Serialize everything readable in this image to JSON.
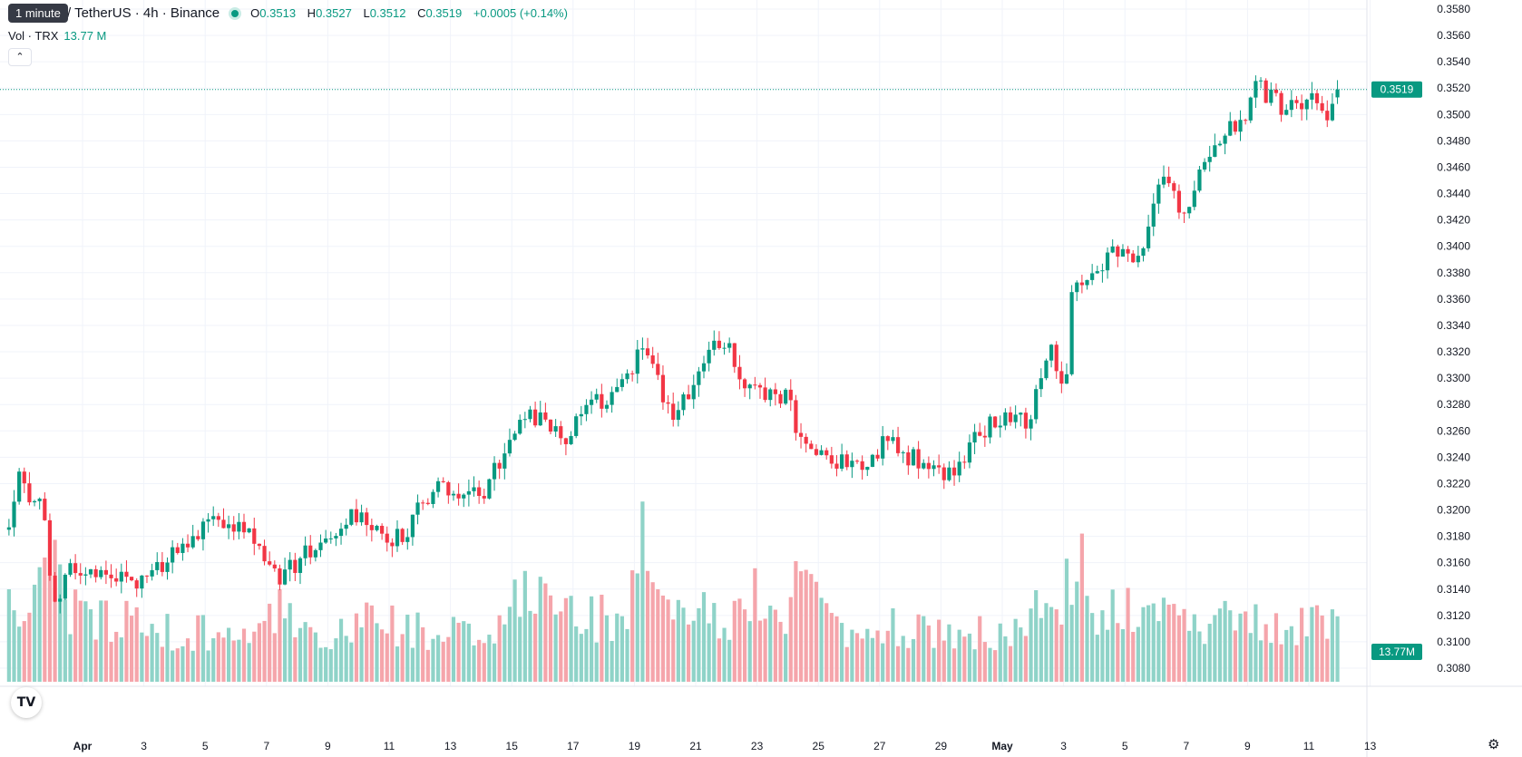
{
  "header": {
    "tooltip": "1 minute",
    "symbol": "/ TetherUS · 4h · Binance",
    "ohlc": {
      "o_label": "O",
      "o": "0.3513",
      "h_label": "H",
      "h": "0.3527",
      "l_label": "L",
      "l": "0.3512",
      "c_label": "C",
      "c": "0.3519",
      "change": "+0.0005 (+0.14%)"
    },
    "vol_label": "Vol · TRX",
    "vol_value": "13.77 M",
    "collapse_icon": "chevron-up-icon"
  },
  "colors": {
    "up": "#089981",
    "down": "#f23645",
    "vol_up": "#8fd3c8",
    "vol_down": "#f5a5ab",
    "grid": "#f0f3fa"
  },
  "chart_data": {
    "type": "candlestick",
    "y_ticks": [
      "0.3580",
      "0.3560",
      "0.3540",
      "0.3520",
      "0.3500",
      "0.3480",
      "0.3460",
      "0.3440",
      "0.3420",
      "0.3400",
      "0.3380",
      "0.3360",
      "0.3340",
      "0.3320",
      "0.3300",
      "0.3280",
      "0.3260",
      "0.3240",
      "0.3220",
      "0.3200",
      "0.3180",
      "0.3160",
      "0.3140",
      "0.3120",
      "0.3100",
      "0.3080"
    ],
    "ylim": [
      0.3072,
      0.3586
    ],
    "x_ticks": [
      {
        "label": "Apr",
        "day": 1,
        "bold": true
      },
      {
        "label": "3",
        "day": 3
      },
      {
        "label": "5",
        "day": 5
      },
      {
        "label": "7",
        "day": 7
      },
      {
        "label": "9",
        "day": 9
      },
      {
        "label": "11",
        "day": 11
      },
      {
        "label": "13",
        "day": 13
      },
      {
        "label": "15",
        "day": 15
      },
      {
        "label": "17",
        "day": 17
      },
      {
        "label": "19",
        "day": 19
      },
      {
        "label": "21",
        "day": 21
      },
      {
        "label": "23",
        "day": 23
      },
      {
        "label": "25",
        "day": 25
      },
      {
        "label": "27",
        "day": 27
      },
      {
        "label": "29",
        "day": 29
      },
      {
        "label": "May",
        "day": 31,
        "bold": true
      },
      {
        "label": "3",
        "day": 33
      },
      {
        "label": "5",
        "day": 35
      },
      {
        "label": "7",
        "day": 37
      },
      {
        "label": "9",
        "day": 39
      },
      {
        "label": "11",
        "day": 41
      },
      {
        "label": "13",
        "day": 43
      }
    ],
    "last_price": "0.3519",
    "last_volume": "13.77M",
    "anchors": [
      {
        "day": -1.4,
        "price": 0.3185,
        "vol": 0.8
      },
      {
        "day": -1.0,
        "price": 0.3242,
        "vol": 0.7
      },
      {
        "day": -0.7,
        "price": 0.3195,
        "vol": 0.7
      },
      {
        "day": -0.35,
        "price": 0.3215,
        "vol": 0.9
      },
      {
        "day": -0.15,
        "price": 0.3172,
        "vol": 1.0
      },
      {
        "day": 0.15,
        "price": 0.3118,
        "vol": 1.1
      },
      {
        "day": 0.5,
        "price": 0.315,
        "vol": 0.8
      },
      {
        "day": 0.8,
        "price": 0.3158,
        "vol": 0.7
      },
      {
        "day": 1.6,
        "price": 0.3155,
        "vol": 0.6
      },
      {
        "day": 2.3,
        "price": 0.3152,
        "vol": 0.6
      },
      {
        "day": 2.7,
        "price": 0.314,
        "vol": 0.8
      },
      {
        "day": 3.3,
        "price": 0.3152,
        "vol": 0.5
      },
      {
        "day": 4.5,
        "price": 0.318,
        "vol": 0.5
      },
      {
        "day": 5.7,
        "price": 0.3192,
        "vol": 0.5
      },
      {
        "day": 6.1,
        "price": 0.3185,
        "vol": 0.6
      },
      {
        "day": 6.6,
        "price": 0.318,
        "vol": 0.5
      },
      {
        "day": 7.4,
        "price": 0.3145,
        "vol": 0.7
      },
      {
        "day": 8.2,
        "price": 0.3165,
        "vol": 0.6
      },
      {
        "day": 9.1,
        "price": 0.318,
        "vol": 0.5
      },
      {
        "day": 9.7,
        "price": 0.32,
        "vol": 0.5
      },
      {
        "day": 10.3,
        "price": 0.3195,
        "vol": 0.6
      },
      {
        "day": 10.8,
        "price": 0.3175,
        "vol": 0.6
      },
      {
        "day": 11.6,
        "price": 0.3185,
        "vol": 0.5
      },
      {
        "day": 12.5,
        "price": 0.3222,
        "vol": 0.5
      },
      {
        "day": 13.3,
        "price": 0.321,
        "vol": 0.6
      },
      {
        "day": 14.1,
        "price": 0.3215,
        "vol": 0.5
      },
      {
        "day": 14.8,
        "price": 0.3242,
        "vol": 0.7
      },
      {
        "day": 15.3,
        "price": 0.3275,
        "vol": 1.0
      },
      {
        "day": 16.1,
        "price": 0.3265,
        "vol": 0.8
      },
      {
        "day": 16.7,
        "price": 0.325,
        "vol": 0.8
      },
      {
        "day": 17.4,
        "price": 0.3275,
        "vol": 0.7
      },
      {
        "day": 18.2,
        "price": 0.3288,
        "vol": 0.6
      },
      {
        "day": 18.9,
        "price": 0.33,
        "vol": 0.8
      },
      {
        "day": 19.2,
        "price": 0.3335,
        "vol": 1.4
      },
      {
        "day": 19.6,
        "price": 0.3305,
        "vol": 0.9
      },
      {
        "day": 20.2,
        "price": 0.3275,
        "vol": 0.8
      },
      {
        "day": 20.9,
        "price": 0.3285,
        "vol": 0.6
      },
      {
        "day": 21.6,
        "price": 0.333,
        "vol": 0.7
      },
      {
        "day": 22.1,
        "price": 0.333,
        "vol": 0.6
      },
      {
        "day": 22.5,
        "price": 0.3295,
        "vol": 1.0
      },
      {
        "day": 23.2,
        "price": 0.3288,
        "vol": 0.7
      },
      {
        "day": 24.0,
        "price": 0.3285,
        "vol": 0.6
      },
      {
        "day": 24.5,
        "price": 0.3245,
        "vol": 1.1
      },
      {
        "day": 25.2,
        "price": 0.3238,
        "vol": 0.6
      },
      {
        "day": 26.6,
        "price": 0.3238,
        "vol": 0.5
      },
      {
        "day": 27.4,
        "price": 0.3255,
        "vol": 0.6
      },
      {
        "day": 28.0,
        "price": 0.324,
        "vol": 0.5
      },
      {
        "day": 28.9,
        "price": 0.3225,
        "vol": 0.5
      },
      {
        "day": 29.5,
        "price": 0.3232,
        "vol": 0.5
      },
      {
        "day": 30.3,
        "price": 0.3262,
        "vol": 0.5
      },
      {
        "day": 31.2,
        "price": 0.3268,
        "vol": 0.5
      },
      {
        "day": 31.9,
        "price": 0.327,
        "vol": 0.6
      },
      {
        "day": 32.6,
        "price": 0.3322,
        "vol": 0.8
      },
      {
        "day": 32.9,
        "price": 0.3298,
        "vol": 0.8
      },
      {
        "day": 33.1,
        "price": 0.33,
        "vol": 1.0
      },
      {
        "day": 33.3,
        "price": 0.337,
        "vol": 1.3
      },
      {
        "day": 34.1,
        "price": 0.3385,
        "vol": 0.7
      },
      {
        "day": 34.7,
        "price": 0.3395,
        "vol": 0.7
      },
      {
        "day": 35.5,
        "price": 0.3395,
        "vol": 0.7
      },
      {
        "day": 35.8,
        "price": 0.3425,
        "vol": 0.8
      },
      {
        "day": 36.3,
        "price": 0.345,
        "vol": 0.7
      },
      {
        "day": 36.9,
        "price": 0.3425,
        "vol": 0.6
      },
      {
        "day": 37.6,
        "price": 0.3462,
        "vol": 0.6
      },
      {
        "day": 38.4,
        "price": 0.3495,
        "vol": 0.7
      },
      {
        "day": 38.8,
        "price": 0.349,
        "vol": 0.7
      },
      {
        "day": 39.3,
        "price": 0.3525,
        "vol": 0.7
      },
      {
        "day": 39.8,
        "price": 0.351,
        "vol": 0.6
      },
      {
        "day": 40.4,
        "price": 0.3505,
        "vol": 0.6
      },
      {
        "day": 41.0,
        "price": 0.3515,
        "vol": 0.6
      },
      {
        "day": 41.5,
        "price": 0.3498,
        "vol": 0.6
      },
      {
        "day": 41.9,
        "price": 0.3519,
        "vol": 0.6
      }
    ]
  }
}
